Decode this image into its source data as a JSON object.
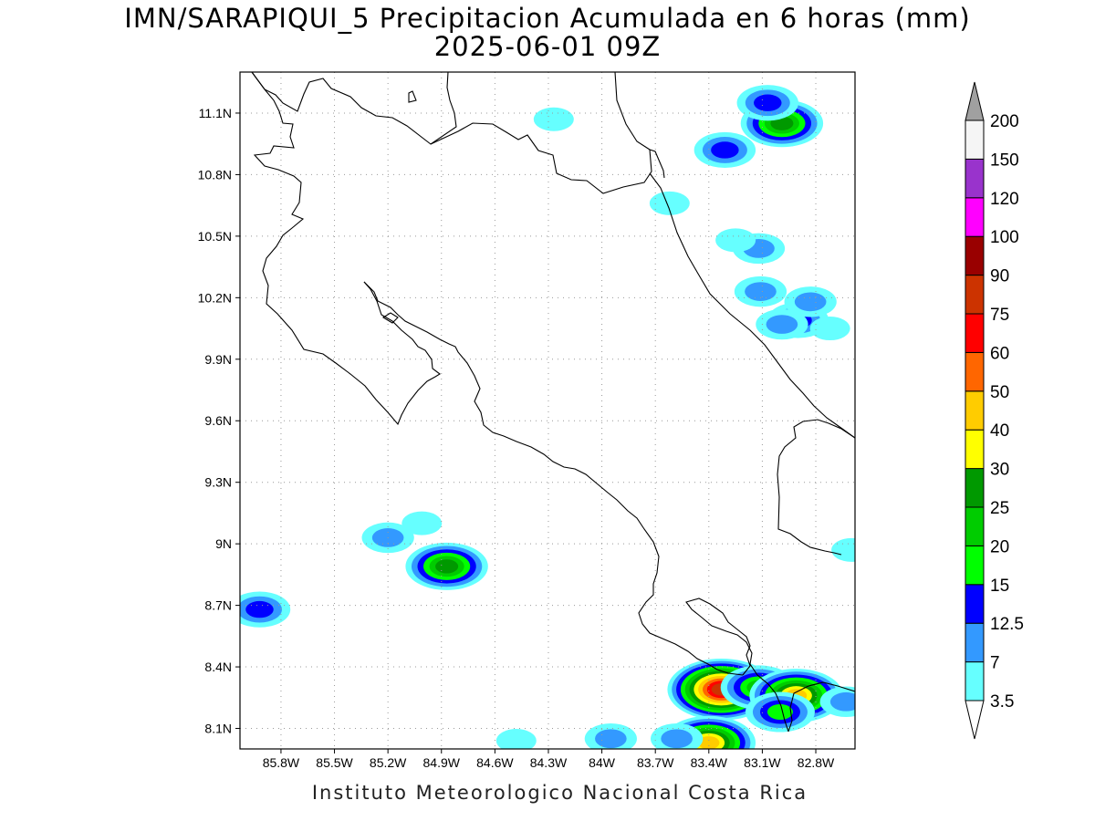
{
  "title": {
    "line1": "IMN/SARAPIQUI_5 Precipitacion Acumulada en 6 horas (mm)",
    "line2": "2025-06-01 09Z"
  },
  "footer": "Instituto Meteorologico Nacional Costa Rica",
  "map": {
    "latitude_labels": [
      "11.1N",
      "10.8N",
      "10.5N",
      "10.2N",
      "9.9N",
      "9.6N",
      "9.3N",
      "9N",
      "8.7N",
      "8.4N",
      "8.1N"
    ],
    "longitude_labels": [
      "85.8W",
      "85.5W",
      "85.2W",
      "84.9W",
      "84.6W",
      "84.3W",
      "84W",
      "83.7W",
      "83.4W",
      "83.1W",
      "82.8W"
    ],
    "gridlines": "dotted",
    "precipitation_cells": [
      {
        "lon": -82.99,
        "lat": 11.05,
        "max_mm": 25
      },
      {
        "lon": -83.07,
        "lat": 11.15,
        "max_mm": 12.5
      },
      {
        "lon": -83.31,
        "lat": 10.92,
        "max_mm": 12.5
      },
      {
        "lon": -83.62,
        "lat": 10.66,
        "max_mm": 3.5
      },
      {
        "lon": -83.12,
        "lat": 10.44,
        "max_mm": 7
      },
      {
        "lon": -83.25,
        "lat": 10.48,
        "max_mm": 3.5
      },
      {
        "lon": -83.11,
        "lat": 10.23,
        "max_mm": 7
      },
      {
        "lon": -82.9,
        "lat": 10.09,
        "max_mm": 12.5
      },
      {
        "lon": -82.99,
        "lat": 10.07,
        "max_mm": 7
      },
      {
        "lon": -82.83,
        "lat": 10.18,
        "max_mm": 7
      },
      {
        "lon": -82.72,
        "lat": 10.05,
        "max_mm": 3.5
      },
      {
        "lon": -84.27,
        "lat": 11.07,
        "max_mm": 3.5
      },
      {
        "lon": -85.2,
        "lat": 9.03,
        "max_mm": 7
      },
      {
        "lon": -85.01,
        "lat": 9.1,
        "max_mm": 3.5
      },
      {
        "lon": -84.87,
        "lat": 8.89,
        "max_mm": 25
      },
      {
        "lon": -85.92,
        "lat": 8.68,
        "max_mm": 12.5
      },
      {
        "lon": -83.33,
        "lat": 8.29,
        "max_mm": 75
      },
      {
        "lon": -83.12,
        "lat": 8.3,
        "max_mm": 20
      },
      {
        "lon": -82.91,
        "lat": 8.26,
        "max_mm": 40
      },
      {
        "lon": -83.0,
        "lat": 8.18,
        "max_mm": 15
      },
      {
        "lon": -83.4,
        "lat": 8.03,
        "max_mm": 40
      },
      {
        "lon": -82.63,
        "lat": 8.23,
        "max_mm": 7
      },
      {
        "lon": -82.6,
        "lat": 8.97,
        "max_mm": 3.5
      },
      {
        "lon": -83.58,
        "lat": 8.05,
        "max_mm": 7
      },
      {
        "lon": -83.95,
        "lat": 8.05,
        "max_mm": 7
      },
      {
        "lon": -84.48,
        "lat": 8.04,
        "max_mm": 3.5
      }
    ]
  },
  "colorbar": {
    "labels": [
      "3.5",
      "7",
      "12.5",
      "15",
      "20",
      "25",
      "30",
      "40",
      "50",
      "60",
      "75",
      "90",
      "100",
      "120",
      "150",
      "200"
    ],
    "colors": [
      "#66ffff",
      "#3399ff",
      "#0000ff",
      "#00ff00",
      "#00cc00",
      "#009900",
      "#ffff00",
      "#ffcc00",
      "#ff6600",
      "#ff0000",
      "#cc3300",
      "#990000",
      "#ff00ff",
      "#9933cc",
      "#f5f5f5"
    ],
    "over_color": "#a0a0a0",
    "under_color": "#ffffff"
  }
}
